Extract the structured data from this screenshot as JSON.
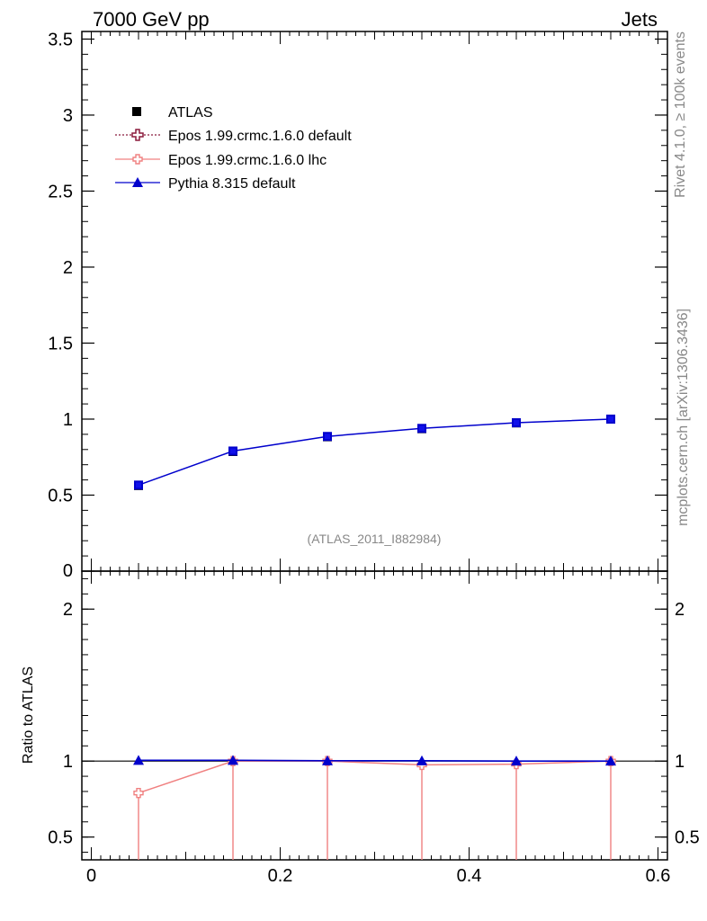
{
  "header": {
    "left": "7000 GeV pp",
    "right": "Jets"
  },
  "side_text": {
    "rivet": "Rivet 4.1.0, ≥ 100k events",
    "mcplots": "mcplots.cern.ch [arXiv:1306.3436]"
  },
  "watermark": "(ATLAS_2011_I882984)",
  "colors": {
    "atlas": "#000000",
    "epos_default": "#8b1a3c",
    "epos_lhc": "#f08080",
    "pythia": "#0000cc"
  },
  "chart_data": {
    "type": "line",
    "x": [
      0.05,
      0.15,
      0.25,
      0.35,
      0.45,
      0.55
    ],
    "xlim": [
      -0.01,
      0.61
    ],
    "xticks": [
      0,
      0.2,
      0.4,
      0.6
    ],
    "xtick_labels": [
      "0",
      "0.2",
      "0.4",
      "0.6"
    ],
    "main": {
      "ylim": [
        0,
        3.55
      ],
      "yticks": [
        0,
        0.5,
        1,
        1.5,
        2,
        2.5,
        3,
        3.5
      ],
      "ytick_labels": [
        "0",
        "0.5",
        "1",
        "1.5",
        "2",
        "2.5",
        "3",
        "3.5"
      ],
      "series": [
        {
          "name": "ATLAS",
          "key": "atlas",
          "values": [
            0.563,
            0.787,
            0.884,
            0.937,
            0.975,
            1.0
          ]
        },
        {
          "name": "Epos 1.99.crmc.1.6.0 default",
          "key": "epos_default",
          "values": [
            null,
            null,
            null,
            null,
            null,
            null
          ]
        },
        {
          "name": "Epos 1.99.crmc.1.6.0 lhc",
          "key": "epos_lhc",
          "values": [
            null,
            null,
            null,
            null,
            null,
            null
          ]
        },
        {
          "name": "Pythia 8.315 default",
          "key": "pythia",
          "values": [
            0.566,
            0.79,
            0.886,
            0.939,
            0.976,
            1.0
          ]
        }
      ]
    },
    "ratio": {
      "ylabel": "Ratio to ATLAS",
      "ylim": [
        0.35,
        2.25
      ],
      "yticks": [
        0.5,
        1,
        2
      ],
      "ytick_labels": [
        "0.5",
        "1",
        "2"
      ],
      "series": [
        {
          "name": "Epos 1.99.crmc.1.6.0 lhc",
          "key": "epos_lhc",
          "values": [
            0.79,
            1.0,
            1.0,
            0.975,
            0.98,
            1.0
          ]
        },
        {
          "name": "Pythia 8.315 default",
          "key": "pythia",
          "values": [
            1.005,
            1.005,
            1.002,
            1.002,
            1.0,
            1.0
          ]
        }
      ]
    }
  }
}
